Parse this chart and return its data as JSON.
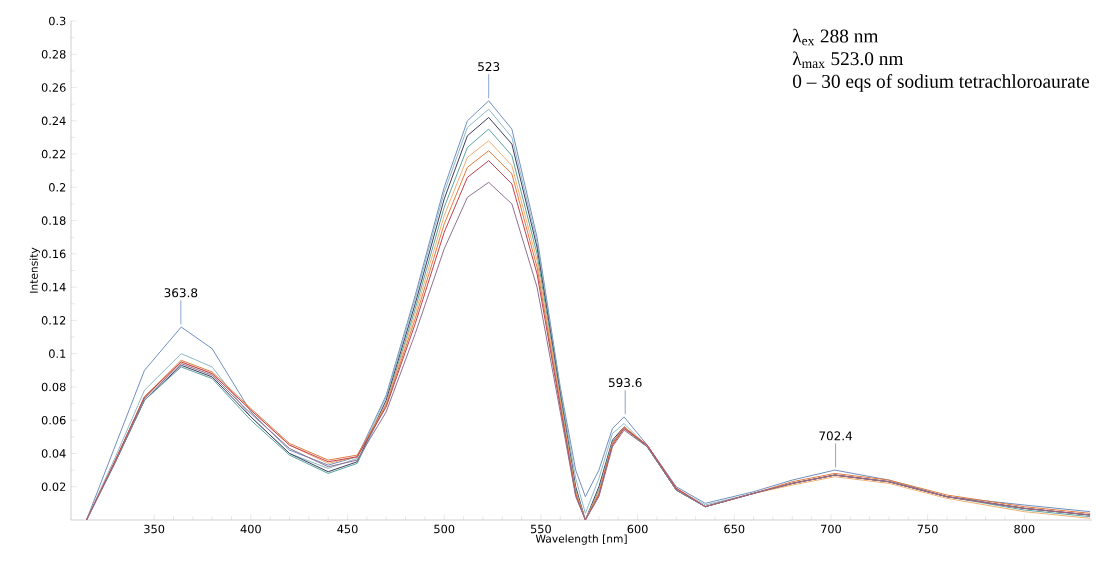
{
  "chart_data": {
    "type": "line",
    "xlabel": "Wavelength [nm]",
    "ylabel": "Intensity",
    "x": [
      315,
      330,
      345,
      364,
      380,
      400,
      420,
      440,
      455,
      470,
      485,
      500,
      512,
      523,
      535,
      548,
      560,
      568,
      573,
      580,
      587,
      593,
      605,
      620,
      635,
      660,
      680,
      702,
      730,
      760,
      800,
      834
    ],
    "series": [
      {
        "color": "#6f8fc0",
        "values": [
          0,
          0.045,
          0.09,
          0.116,
          0.103,
          0.065,
          0.042,
          0.033,
          0.038,
          0.075,
          0.135,
          0.2,
          0.24,
          0.252,
          0.235,
          0.17,
          0.08,
          0.03,
          0.014,
          0.03,
          0.055,
          0.062,
          0.045,
          0.02,
          0.01,
          0.017,
          0.024,
          0.03,
          0.024,
          0.014,
          0.009,
          0.005
        ]
      },
      {
        "color": "#8fb8c8",
        "values": [
          0,
          0.038,
          0.078,
          0.1,
          0.092,
          0.062,
          0.04,
          0.031,
          0.037,
          0.074,
          0.133,
          0.197,
          0.236,
          0.247,
          0.23,
          0.167,
          0.078,
          0.025,
          0.004,
          0.025,
          0.052,
          0.058,
          0.044,
          0.019,
          0.009,
          0.016,
          0.022,
          0.027,
          0.023,
          0.014,
          0.007,
          0.003
        ]
      },
      {
        "color": "#3c3c5c",
        "values": [
          0,
          0.035,
          0.072,
          0.093,
          0.086,
          0.062,
          0.04,
          0.029,
          0.035,
          0.072,
          0.13,
          0.193,
          0.231,
          0.242,
          0.226,
          0.164,
          0.076,
          0.02,
          0,
          0.02,
          0.048,
          0.056,
          0.044,
          0.018,
          0.008,
          0.016,
          0.022,
          0.027,
          0.023,
          0.014,
          0.007,
          0.003
        ]
      },
      {
        "color": "#5aa5a0",
        "values": [
          0,
          0.035,
          0.072,
          0.092,
          0.085,
          0.06,
          0.039,
          0.028,
          0.034,
          0.07,
          0.127,
          0.188,
          0.224,
          0.235,
          0.219,
          0.16,
          0.074,
          0.018,
          0,
          0.018,
          0.047,
          0.055,
          0.044,
          0.018,
          0.008,
          0.016,
          0.022,
          0.027,
          0.023,
          0.014,
          0.006,
          0.002
        ]
      },
      {
        "color": "#f0b070",
        "values": [
          0,
          0.036,
          0.074,
          0.095,
          0.088,
          0.066,
          0.045,
          0.034,
          0.038,
          0.07,
          0.124,
          0.183,
          0.218,
          0.228,
          0.213,
          0.156,
          0.072,
          0.017,
          0,
          0.017,
          0.046,
          0.055,
          0.045,
          0.019,
          0.008,
          0.016,
          0.021,
          0.026,
          0.022,
          0.013,
          0.005,
          0.001
        ]
      },
      {
        "color": "#e07a40",
        "values": [
          0,
          0.036,
          0.074,
          0.096,
          0.089,
          0.067,
          0.046,
          0.036,
          0.039,
          0.069,
          0.121,
          0.178,
          0.212,
          0.222,
          0.208,
          0.152,
          0.07,
          0.016,
          0,
          0.016,
          0.046,
          0.056,
          0.045,
          0.019,
          0.008,
          0.016,
          0.023,
          0.028,
          0.024,
          0.015,
          0.008,
          0.004
        ]
      },
      {
        "color": "#c04050",
        "values": [
          0,
          0.036,
          0.074,
          0.095,
          0.088,
          0.066,
          0.045,
          0.035,
          0.038,
          0.068,
          0.118,
          0.173,
          0.206,
          0.216,
          0.202,
          0.148,
          0.068,
          0.015,
          0,
          0.015,
          0.045,
          0.055,
          0.045,
          0.019,
          0.008,
          0.016,
          0.022,
          0.027,
          0.023,
          0.014,
          0.007,
          0.003
        ]
      },
      {
        "color": "#907090",
        "values": [
          0,
          0.035,
          0.073,
          0.094,
          0.087,
          0.064,
          0.043,
          0.032,
          0.036,
          0.065,
          0.112,
          0.163,
          0.194,
          0.203,
          0.19,
          0.14,
          0.065,
          0.014,
          0,
          0.014,
          0.044,
          0.054,
          0.044,
          0.018,
          0.008,
          0.016,
          0.022,
          0.027,
          0.023,
          0.014,
          0.007,
          0.003
        ]
      }
    ],
    "xlim": [
      307,
      835
    ],
    "ylim": [
      0,
      0.3
    ],
    "xticks": [
      350,
      400,
      450,
      500,
      550,
      600,
      650,
      700,
      750,
      800
    ],
    "yticks": [
      0.02,
      0.04,
      0.06,
      0.08,
      0.1,
      0.12,
      0.14,
      0.16,
      0.18,
      0.2,
      0.22,
      0.24,
      0.26,
      0.28,
      0.3
    ],
    "grid": false,
    "marker": "none",
    "line_style": "solid",
    "annotations": [
      {
        "text": "363.8",
        "x": 363.8,
        "y": 0.116
      },
      {
        "text": "523",
        "x": 523,
        "y": 0.252
      },
      {
        "text": "593.6",
        "x": 593.6,
        "y": 0.062
      },
      {
        "text": "702.4",
        "x": 702.4,
        "y": 0.03
      },
      "λ$_{ex}$ 288 nm",
      "λ$_{max}$ 523.0 nm",
      "0 – 30 eqs of sodium tetrachloroaurate"
    ]
  }
}
